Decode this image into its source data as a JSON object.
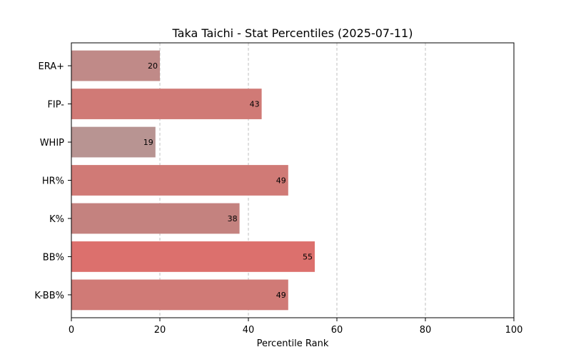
{
  "chart_data": {
    "type": "bar",
    "orientation": "horizontal",
    "title": "Taka Taichi - Stat Percentiles (2025-07-11)",
    "xlabel": "Percentile Rank",
    "ylabel": "",
    "xlim": [
      0,
      100
    ],
    "xticks": [
      0,
      20,
      40,
      60,
      80,
      100
    ],
    "grid": "x-dashed",
    "categories": [
      "ERA+",
      "FIP-",
      "WHIP",
      "HR%",
      "K%",
      "BB%",
      "K-BB%"
    ],
    "values": [
      20,
      43,
      19,
      49,
      38,
      55,
      49
    ],
    "colors": [
      "#c08a88",
      "#d07a76",
      "#b89492",
      "#d07a76",
      "#c4827f",
      "#dc706d",
      "#d07a76"
    ]
  }
}
